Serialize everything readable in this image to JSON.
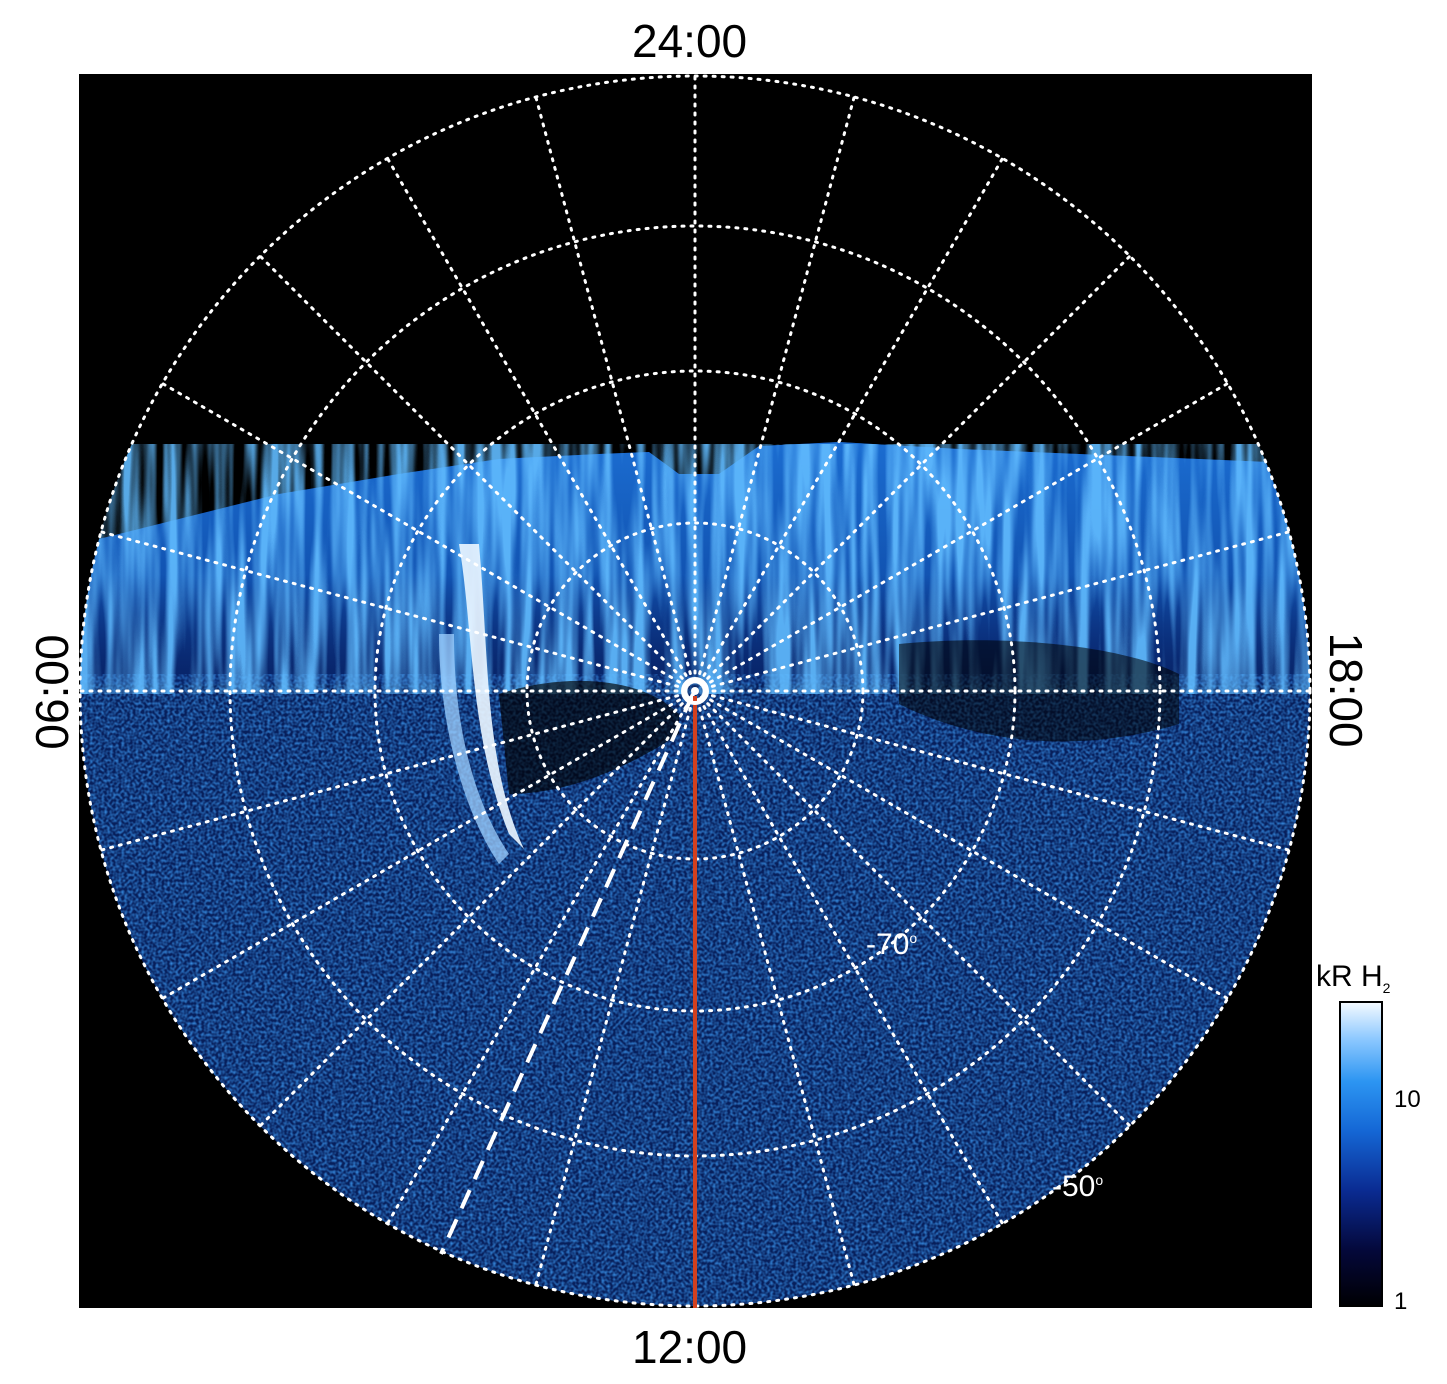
{
  "labels": {
    "top": "24:00",
    "bottom": "12:00",
    "left": "06:00",
    "right": "18:00"
  },
  "latitude_labels": {
    "lat70": "-70",
    "lat50": "-50",
    "degree": "o"
  },
  "colorbar": {
    "title_main": "kR H",
    "title_sub": "2",
    "tick_10": "10",
    "tick_1": "1",
    "colors": [
      "#000004",
      "#0a2b92",
      "#2c95f2",
      "#f2f9ff"
    ]
  },
  "colors": {
    "background": "#000000",
    "grid": "#ffffff",
    "meridian_line": "#d2401e",
    "emission": "#2a8cf0"
  }
}
